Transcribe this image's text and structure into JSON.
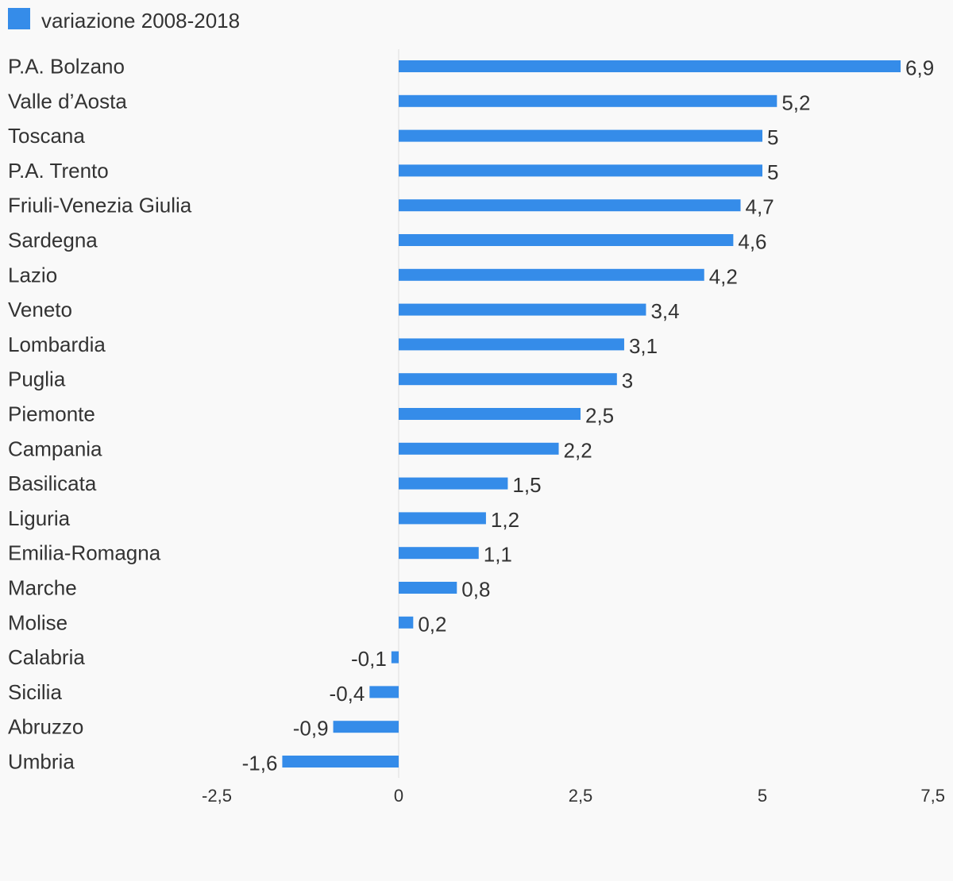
{
  "chart_data": {
    "type": "bar",
    "orientation": "horizontal",
    "categories": [
      "P.A. Bolzano",
      "Valle d’Aosta",
      "Toscana",
      "P.A. Trento",
      "Friuli-Venezia Giulia",
      "Sardegna",
      "Lazio",
      "Veneto",
      "Lombardia",
      "Puglia",
      "Piemonte",
      "Campania",
      "Basilicata",
      "Liguria",
      "Emilia-Romagna",
      "Marche",
      "Molise",
      "Calabria",
      "Sicilia",
      "Abruzzo",
      "Umbria"
    ],
    "series": [
      {
        "name": "variazione 2008-2018",
        "color": "#358ce9",
        "values": [
          6.9,
          5.2,
          5,
          5,
          4.7,
          4.6,
          4.2,
          3.4,
          3.1,
          3,
          2.5,
          2.2,
          1.5,
          1.2,
          1.1,
          0.8,
          0.2,
          -0.1,
          -0.4,
          -0.9,
          -1.6
        ],
        "value_labels": [
          "6,9",
          "5,2",
          "5",
          "5",
          "4,7",
          "4,6",
          "4,2",
          "3,4",
          "3,1",
          "3",
          "2,5",
          "2,2",
          "1,5",
          "1,2",
          "1,1",
          "0,8",
          "0,2",
          "-0,1",
          "-0,4",
          "-0,9",
          "-1,6"
        ]
      }
    ],
    "xlim": [
      -2.5,
      7.5
    ],
    "xticks": [
      -2.5,
      0,
      2.5,
      5,
      7.5
    ],
    "xtick_labels": [
      "-2,5",
      "0",
      "2,5",
      "5",
      "7,5"
    ],
    "legend_position": "top-left",
    "grid": false,
    "zero_line_color": "#dddddd"
  }
}
